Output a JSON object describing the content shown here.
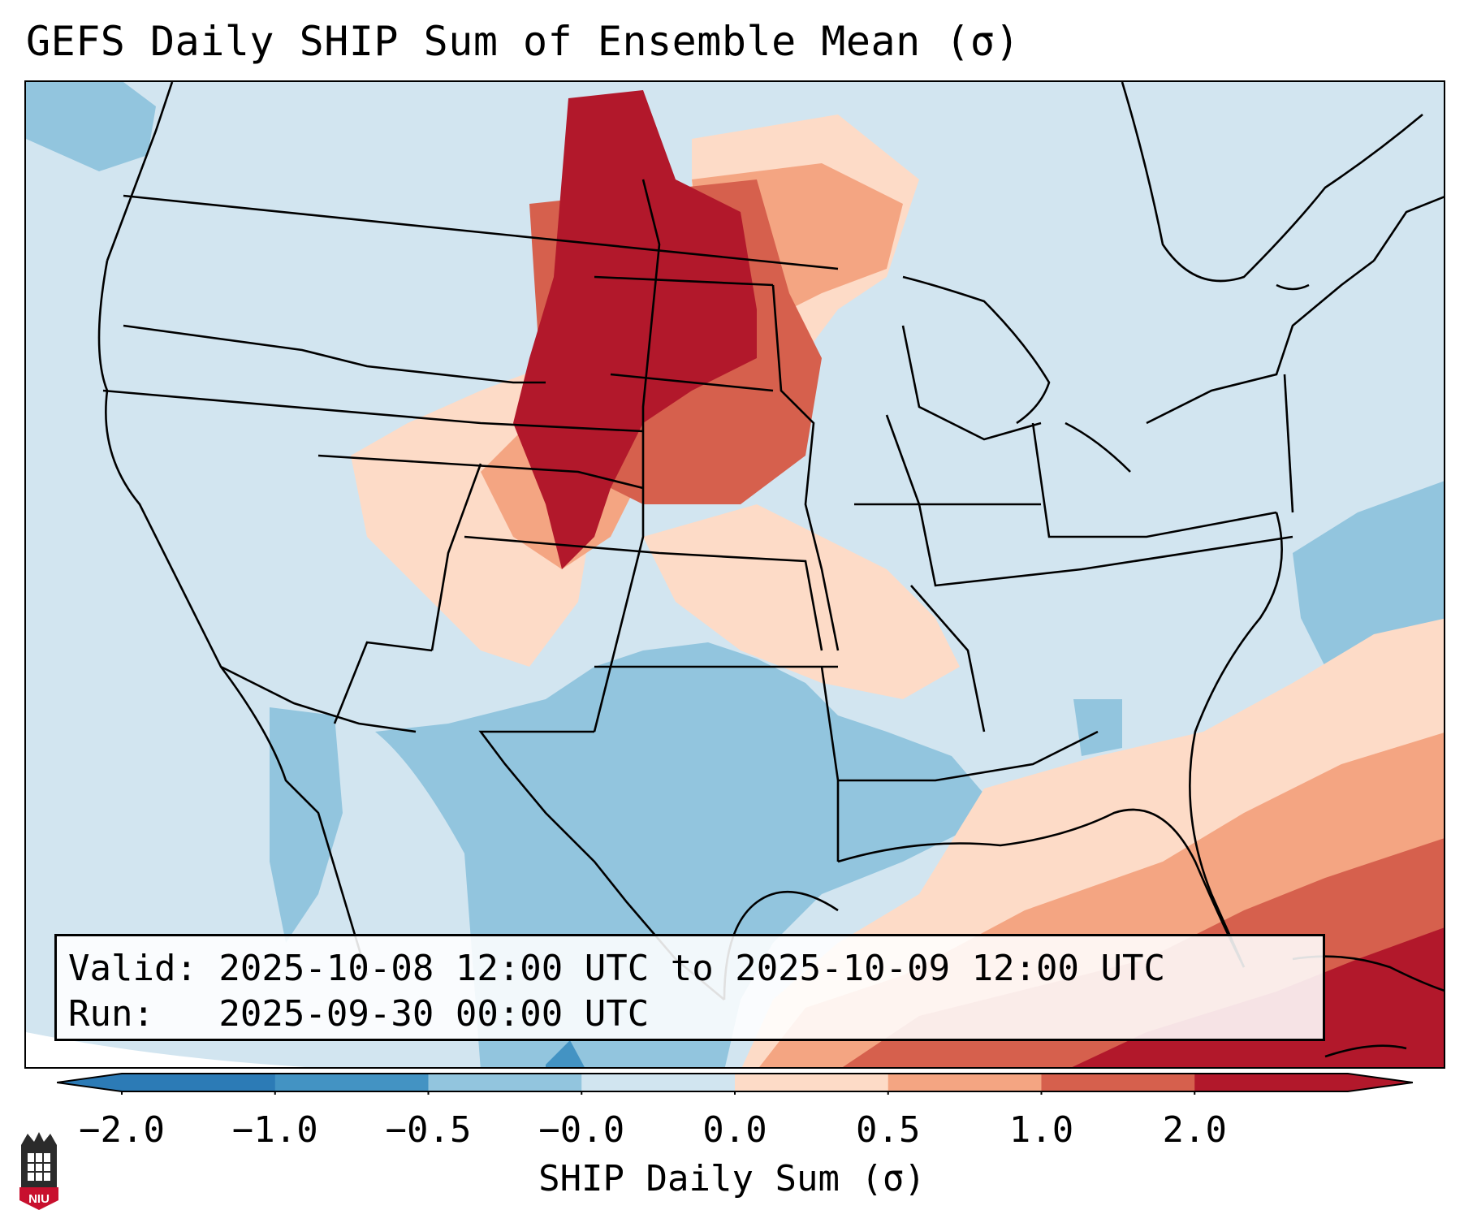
{
  "title": "GEFS Daily SHIP Sum of Ensemble Mean (σ)",
  "info": {
    "valid_line": "Valid: 2025-10-08 12:00 UTC to 2025-10-09 12:00 UTC",
    "run_line": "Run:   2025-09-30 00:00 UTC"
  },
  "colorbar": {
    "label": "SHIP Daily Sum (σ)",
    "ticks": [
      "−2.0",
      "−1.0",
      "−0.5",
      "−0.0",
      "0.0",
      "0.5",
      "1.0",
      "2.0"
    ],
    "colors": [
      "#2c7bb6",
      "#4393c3",
      "#92c5de",
      "#d1e5f0",
      "#fddbc7",
      "#f4a582",
      "#d6604d",
      "#b2182b"
    ],
    "extend": "both"
  },
  "map": {
    "region": "CONUS",
    "colors": {
      "background": "#d2e5f0",
      "neg_light": "#92c5de",
      "neg_mid": "#4393c3",
      "pos_light": "#fddbc7",
      "pos_mid": "#f4a582",
      "pos_strong": "#d6604d",
      "pos_max": "#b2182b"
    }
  },
  "logo": {
    "text": "NIU",
    "name": "niu-logo-icon"
  }
}
